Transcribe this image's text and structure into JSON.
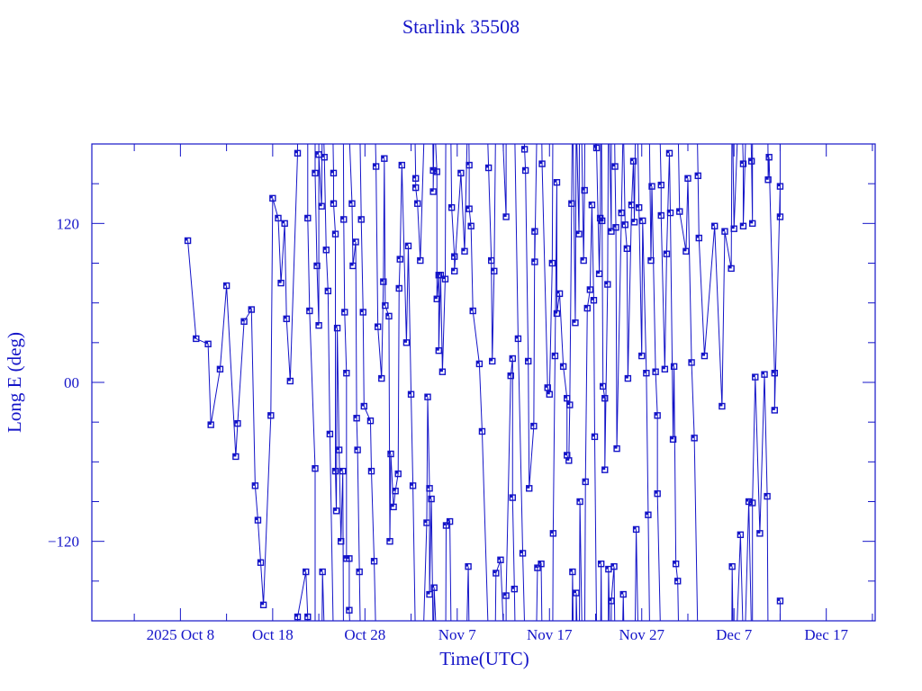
{
  "chart_data": {
    "type": "line",
    "title": "Starlink 35508",
    "xlabel": "Time(UTC)",
    "ylabel": "Long E (deg)",
    "x_origin": "2025-10-08",
    "xlim": [
      -9.6,
      75.3
    ],
    "ylim": [
      -180,
      180
    ],
    "x_ticks": [
      {
        "value": 0,
        "label": "2025 Oct  8"
      },
      {
        "value": 10,
        "label": "Oct 18"
      },
      {
        "value": 20,
        "label": "Oct 28"
      },
      {
        "value": 30,
        "label": "Nov  7"
      },
      {
        "value": 40,
        "label": "Nov 17"
      },
      {
        "value": 50,
        "label": "Nov 27"
      },
      {
        "value": 60,
        "label": "Dec  7"
      },
      {
        "value": 70,
        "label": "Dec 17"
      }
    ],
    "y_ticks": [
      {
        "value": 120,
        "label": "120"
      },
      {
        "value": 0,
        "label": "00"
      },
      {
        "value": -120,
        "label": "−120"
      }
    ],
    "grid": false,
    "color": "#1414c8",
    "x": [
      0.8,
      1.7,
      3.0,
      3.3,
      4.3,
      5.0,
      6.0,
      6.2,
      6.9,
      7.7,
      8.1,
      8.4,
      8.7,
      9.0,
      9.8,
      10.0,
      10.6,
      10.9,
      11.3,
      11.5,
      11.9,
      12.7,
      12.7,
      13.6,
      13.8,
      13.8,
      14.0,
      14.6,
      14.6,
      14.8,
      15.0,
      15.0,
      15.3,
      15.4,
      15.6,
      15.8,
      16.0,
      16.2,
      16.6,
      16.6,
      16.8,
      16.8,
      16.9,
      17.0,
      17.2,
      17.4,
      17.6,
      17.7,
      17.8,
      18.0,
      18.0,
      18.3,
      18.3,
      18.6,
      18.7,
      19.0,
      19.1,
      19.2,
      19.4,
      19.6,
      19.8,
      19.9,
      20.6,
      20.7,
      21.0,
      21.2,
      21.4,
      21.8,
      22.0,
      22.1,
      22.2,
      22.6,
      22.7,
      22.8,
      23.1,
      23.3,
      23.6,
      23.7,
      23.8,
      24.0,
      24.5,
      24.7,
      25.0,
      25.2,
      25.5,
      25.5,
      25.7,
      26.0,
      26.7,
      26.8,
      27.0,
      27.0,
      27.2,
      27.4,
      27.4,
      27.5,
      27.8,
      27.8,
      28.0,
      28.0,
      28.2,
      28.4,
      28.7,
      28.8,
      29.2,
      29.4,
      29.7,
      29.7,
      30.4,
      30.8,
      31.2,
      31.3,
      31.3,
      31.5,
      31.7,
      32.4,
      32.7,
      33.4,
      33.7,
      33.8,
      34.0,
      34.2,
      34.7,
      35.3,
      35.3,
      35.8,
      36.0,
      36.0,
      36.2,
      36.6,
      37.1,
      37.3,
      37.4,
      37.7,
      37.8,
      38.3,
      38.4,
      38.4,
      38.7,
      39.1,
      39.2,
      39.8,
      40.0,
      40.3,
      40.4,
      40.6,
      40.8,
      40.8,
      41.1,
      41.5,
      41.9,
      41.9,
      42.1,
      42.2,
      42.4,
      42.5,
      42.8,
      42.9,
      43.2,
      43.3,
      43.7,
      43.8,
      43.9,
      44.1,
      44.4,
      44.6,
      44.8,
      44.9,
      45.1,
      45.4,
      45.5,
      45.6,
      45.7,
      45.8,
      46.0,
      46.0,
      46.3,
      46.4,
      46.7,
      46.7,
      47.0,
      47.1,
      47.2,
      47.3,
      47.8,
      48.0,
      48.2,
      48.4,
      48.5,
      48.9,
      49.1,
      49.2,
      49.4,
      49.7,
      50.0,
      50.1,
      50.5,
      50.7,
      51.0,
      51.1,
      51.5,
      51.7,
      51.7,
      52.1,
      52.1,
      52.5,
      52.7,
      53.0,
      53.1,
      53.4,
      53.5,
      53.7,
      53.9,
      54.1,
      54.8,
      55.0,
      55.4,
      55.7,
      56.1,
      56.2,
      56.8,
      57.9,
      58.7,
      59.0,
      59.7,
      59.8,
      60.0,
      60.7,
      61.0,
      61.0,
      61.6,
      61.9,
      62.0,
      62.0,
      62.3,
      62.8,
      63.3,
      63.6,
      63.7,
      63.8,
      64.4,
      64.4,
      65.0,
      65.0,
      65.0
    ],
    "y": [
      107,
      33,
      29,
      -32,
      10,
      73,
      -56,
      -31,
      46,
      55,
      -78,
      -104,
      -136,
      -168,
      -25,
      139,
      124,
      75,
      120,
      48,
      1,
      173,
      -177,
      -143,
      -177,
      124,
      54,
      -65,
      158,
      88,
      43,
      172,
      133,
      -143,
      170,
      100,
      69,
      -39,
      158,
      135,
      112,
      -67,
      -97,
      41,
      -51,
      -120,
      -67,
      123,
      53,
      7,
      -133,
      -133,
      -172,
      135,
      88,
      106,
      -27,
      -51,
      -143,
      123,
      53,
      -18,
      -29,
      -67,
      -135,
      163,
      42,
      3,
      76,
      169,
      58,
      50,
      -120,
      -54,
      -94,
      -82,
      -69,
      71,
      93,
      164,
      30,
      103,
      -9,
      -78,
      154,
      147,
      135,
      92,
      -106,
      -11,
      -80,
      -160,
      -88,
      160,
      144,
      -155,
      159,
      63,
      81,
      24,
      81,
      8,
      78,
      -108,
      -105,
      132,
      95,
      84,
      158,
      99,
      -139,
      164,
      131,
      118,
      54,
      14,
      -37,
      162,
      92,
      16,
      84,
      -144,
      -134,
      125,
      -161,
      5,
      18,
      -87,
      -156,
      33,
      -129,
      176,
      160,
      16,
      -80,
      -33,
      114,
      91,
      -140,
      -137,
      165,
      -4,
      -9,
      90,
      -114,
      20,
      151,
      52,
      67,
      12,
      -12,
      -55,
      -59,
      -17,
      135,
      -143,
      45,
      -159,
      112,
      -90,
      92,
      145,
      -75,
      56,
      70,
      134,
      62,
      -41,
      177,
      82,
      124,
      -137,
      122,
      -3,
      -12,
      -66,
      74,
      -141,
      114,
      -165,
      -139,
      163,
      117,
      -50,
      128,
      -160,
      119,
      101,
      3,
      134,
      167,
      121,
      -111,
      132,
      20,
      122,
      7,
      -100,
      92,
      148,
      8,
      -25,
      -84,
      149,
      126,
      10,
      97,
      173,
      128,
      -43,
      12,
      -137,
      -150,
      129,
      99,
      154,
      15,
      -42,
      156,
      109,
      20,
      118,
      -18,
      114,
      86,
      -139,
      116,
      -115,
      165,
      118,
      -90,
      167,
      120,
      -91,
      4,
      -114,
      6,
      -86,
      153,
      170,
      7,
      -21,
      148,
      125,
      -165
    ]
  }
}
